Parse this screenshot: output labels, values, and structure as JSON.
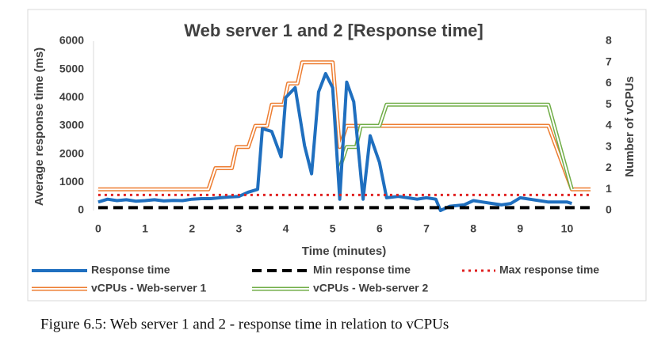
{
  "chart_data": {
    "type": "line",
    "title": "Web server 1 and 2 [Response time]",
    "x_label": "Time (minutes)",
    "y_label": "Average response time (ms)",
    "y2_label": "Number of vCPUs",
    "xlim": [
      -0.1,
      10.55
    ],
    "xticks": [
      0,
      1,
      2,
      3,
      4,
      5,
      6,
      7,
      8,
      9,
      10
    ],
    "ylim": [
      0,
      6000
    ],
    "yticks": [
      0,
      1000,
      2000,
      3000,
      4000,
      5000,
      6000
    ],
    "y2lim": [
      0,
      8
    ],
    "y2ticks": [
      0,
      1,
      2,
      3,
      4,
      5,
      6,
      7,
      8
    ],
    "grid": false,
    "series": [
      {
        "name": "Response time",
        "color": "#1f6fbf",
        "style": "solid",
        "x": [
          0,
          0.2,
          0.4,
          0.6,
          0.8,
          1.0,
          1.2,
          1.4,
          1.6,
          1.8,
          2.0,
          2.2,
          2.4,
          2.6,
          2.8,
          3.0,
          3.2,
          3.4,
          3.5,
          3.7,
          3.9,
          4.0,
          4.2,
          4.4,
          4.55,
          4.7,
          4.85,
          5.0,
          5.15,
          5.3,
          5.45,
          5.65,
          5.8,
          6.0,
          6.15,
          6.4,
          6.6,
          6.8,
          7.0,
          7.2,
          7.3,
          7.5,
          7.8,
          8.0,
          8.2,
          8.4,
          8.6,
          8.8,
          9.0,
          9.2,
          9.4,
          9.6,
          9.8,
          10.0,
          10.1
        ],
        "values": [
          300,
          400,
          350,
          380,
          330,
          350,
          380,
          340,
          360,
          350,
          400,
          420,
          420,
          450,
          480,
          500,
          650,
          750,
          2900,
          2800,
          1900,
          4000,
          4350,
          2300,
          1300,
          4200,
          4850,
          4350,
          400,
          4550,
          3850,
          400,
          2650,
          1700,
          450,
          500,
          450,
          400,
          450,
          400,
          0,
          150,
          200,
          350,
          300,
          250,
          200,
          250,
          450,
          400,
          350,
          300,
          300,
          300,
          250
        ]
      },
      {
        "name": "Min response time",
        "color": "#000000",
        "style": "dashed",
        "x": [
          0,
          10.5
        ],
        "values": [
          100,
          100
        ]
      },
      {
        "name": "Max response time",
        "color": "#e02020",
        "style": "dotted",
        "x": [
          0,
          10.5
        ],
        "values": [
          550,
          550
        ]
      },
      {
        "name": "vCPUs - Web-server 1",
        "color": "#ed7d31",
        "style": "double",
        "axis": "y2",
        "x": [
          0,
          2.35,
          2.5,
          2.85,
          2.95,
          3.2,
          3.35,
          3.6,
          3.7,
          3.95,
          4.05,
          4.25,
          4.35,
          5.0,
          5.15,
          5.3,
          9.6,
          10.1,
          10.5
        ],
        "values": [
          1,
          1,
          2,
          2,
          3,
          3,
          4,
          4,
          5,
          5,
          6,
          6,
          7,
          7,
          3,
          4,
          4,
          1,
          1
        ]
      },
      {
        "name": "vCPUs - Web-server 2",
        "color": "#70ad47",
        "style": "double",
        "axis": "y2",
        "x": [
          5.15,
          5.3,
          5.5,
          5.6,
          6.0,
          6.15,
          9.6,
          10.1
        ],
        "values": [
          2,
          3,
          3,
          4,
          4,
          5,
          5,
          1
        ]
      }
    ]
  },
  "caption": "Figure 6.5: Web server 1 and 2 - response time in relation to vCPUs"
}
